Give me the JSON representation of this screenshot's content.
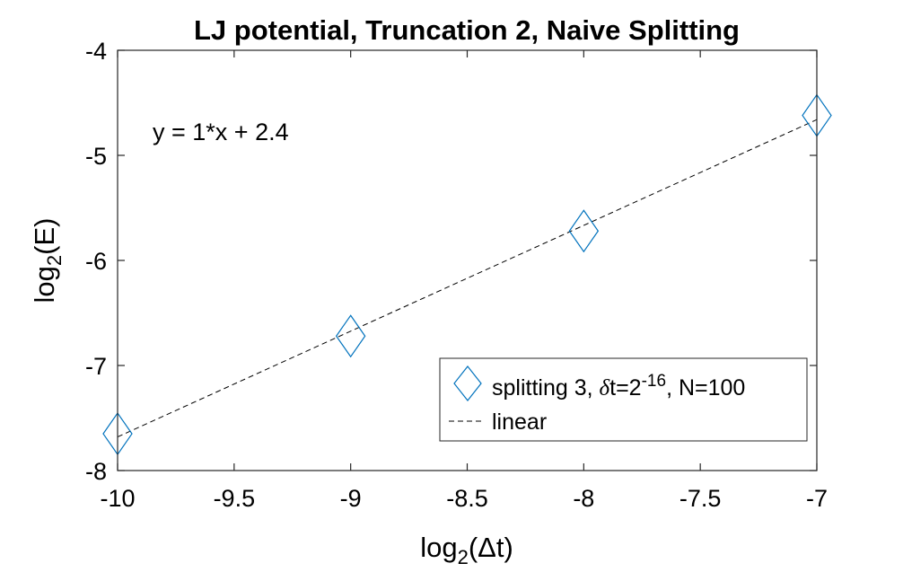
{
  "chart_data": {
    "type": "scatter",
    "title": "LJ potential, Truncation 2, Naive Splitting",
    "xlabel": {
      "main": "log",
      "sub": "2",
      "rest": "(Δt)"
    },
    "ylabel": {
      "main": "log",
      "sub": "2",
      "rest": "(E)"
    },
    "xlim": [
      -10,
      -7
    ],
    "ylim": [
      -8,
      -4
    ],
    "x_ticks": [
      -10,
      -9.5,
      -9,
      -8.5,
      -8,
      -7.5,
      -7
    ],
    "x_tick_labels": [
      "-10",
      "-9.5",
      "-9",
      "-8.5",
      "-8",
      "-7.5",
      "-7"
    ],
    "y_ticks": [
      -8,
      -7,
      -6,
      -5,
      -4
    ],
    "y_tick_labels": [
      "-8",
      "-7",
      "-6",
      "-5",
      "-4"
    ],
    "grid": false,
    "annotation": "y = 1*x + 2.4",
    "series": [
      {
        "name": "splitting 3, δt=2^-16, N=100",
        "kind": "marker",
        "marker": "diamond",
        "color": "#0072BD",
        "x": [
          -10,
          -9,
          -8,
          -7
        ],
        "y": [
          -7.65,
          -6.72,
          -5.72,
          -4.62
        ]
      },
      {
        "name": "linear",
        "kind": "line",
        "style": "dashed",
        "color": "#000000",
        "x": [
          -10,
          -7
        ],
        "y": [
          -7.68,
          -4.66
        ]
      }
    ],
    "legend": {
      "position": "bottom-right",
      "entry1": {
        "main": "splitting 3, ",
        "delta": "δ",
        "mid": "t=2",
        "sup": "-16",
        "end": ", N=100"
      },
      "entry2": "linear"
    }
  }
}
